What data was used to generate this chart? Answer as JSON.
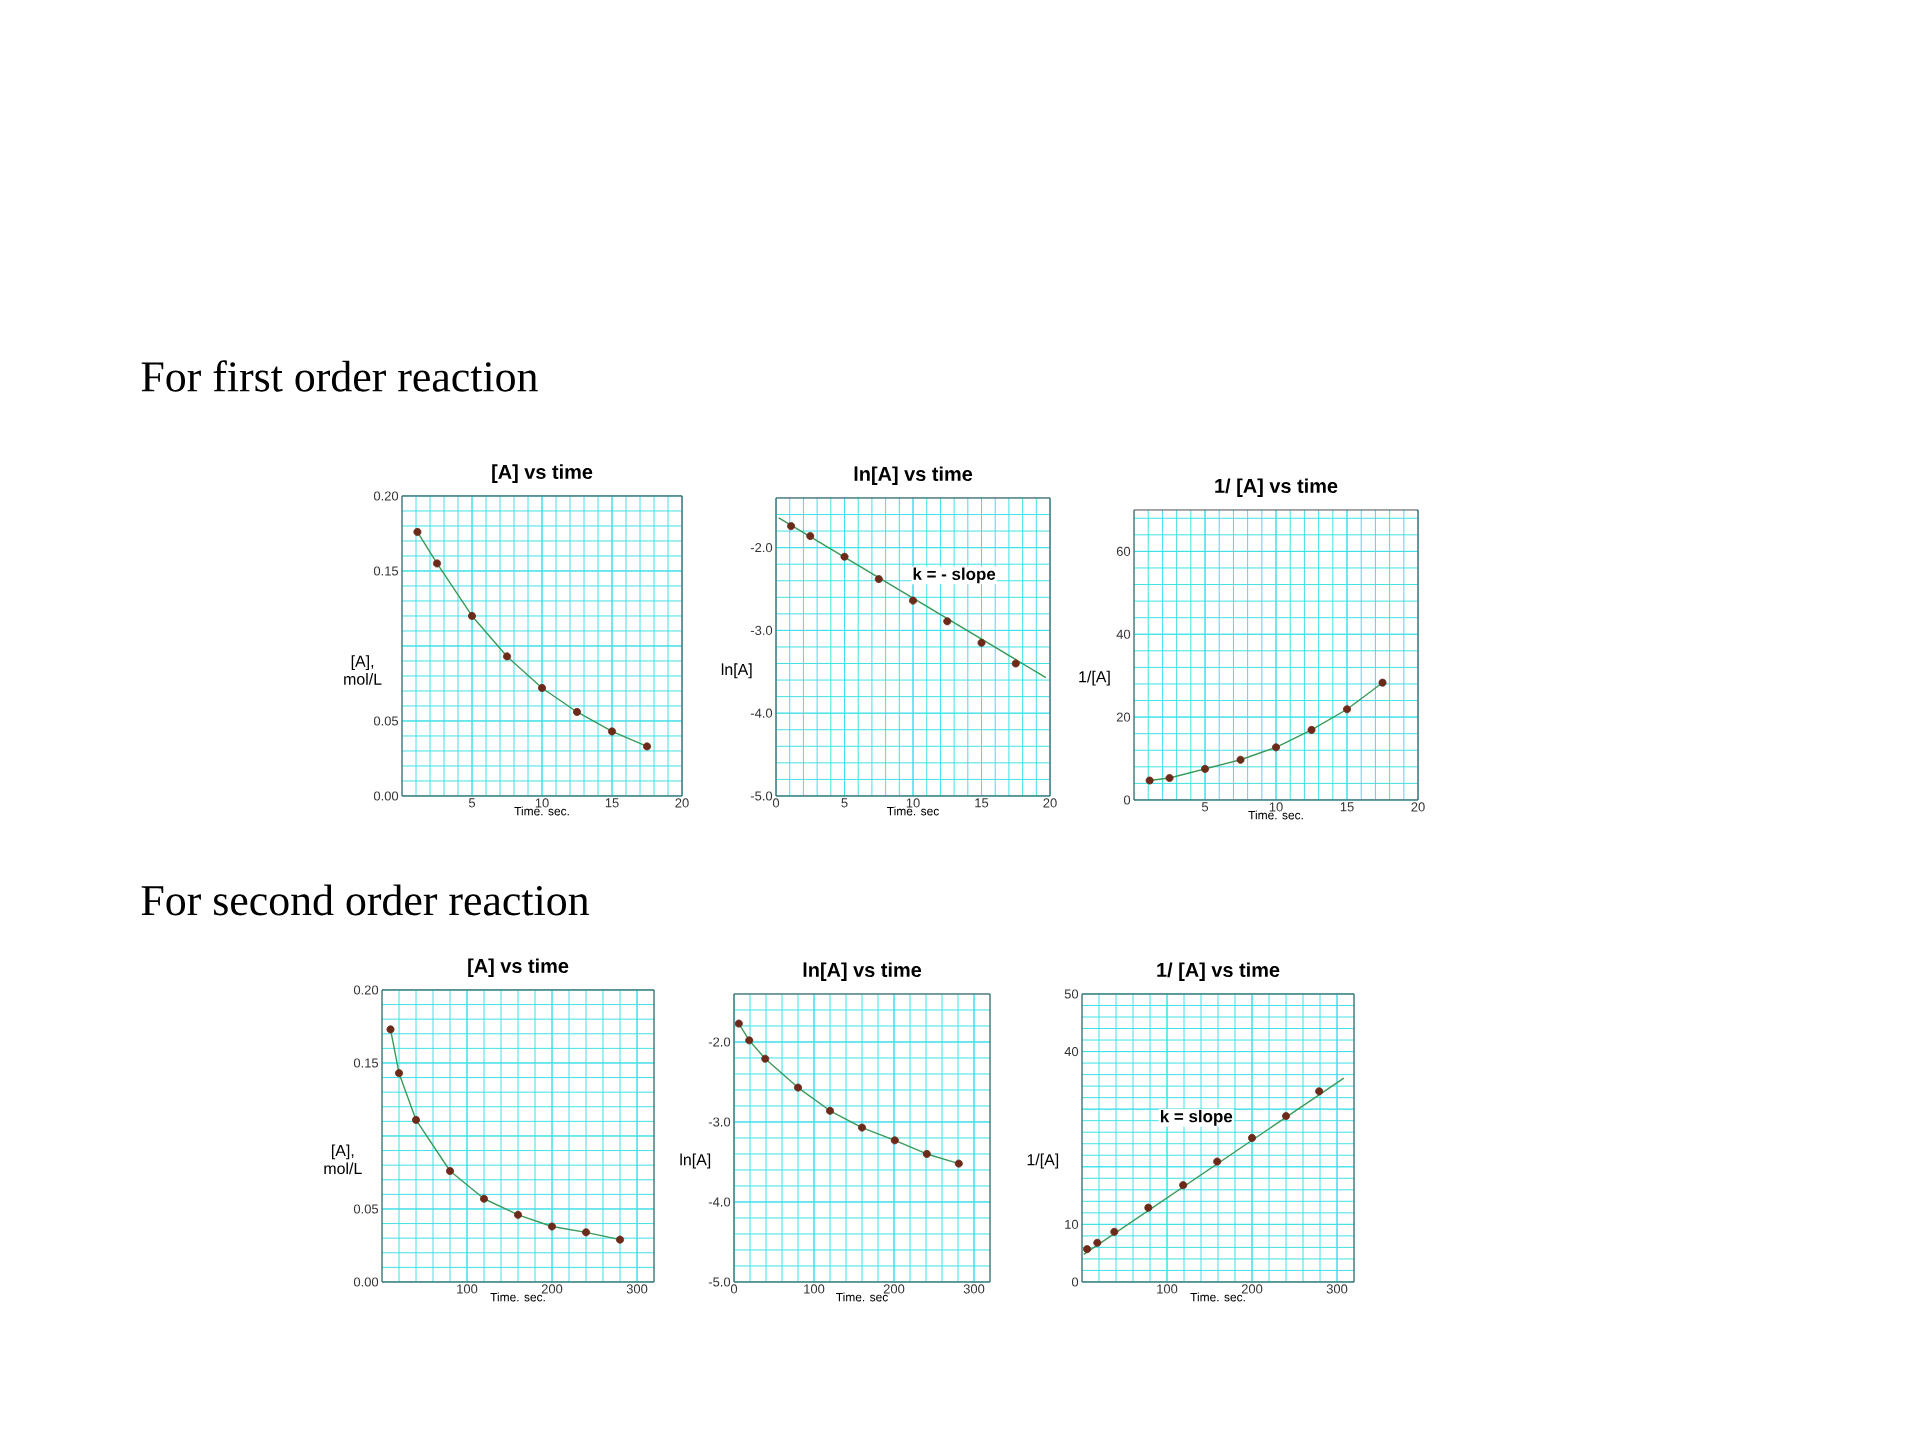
{
  "chart_data": [
    {
      "type": "other",
      "title": "For first order reaction"
    },
    {
      "type": "line",
      "title": "[A]  vs time",
      "xlabel": "Time. sec.",
      "ylabel": "[A], mol/L",
      "xlim": [
        0,
        20
      ],
      "ylim": [
        0,
        0.2
      ],
      "xticks": [
        5,
        10,
        15,
        20
      ],
      "yticks": [
        {
          "value": 0,
          "label": "0.00"
        },
        0.05,
        {
          "value": 0.1,
          "label": null
        },
        0.15,
        {
          "value": 0.2,
          "label": "0.20"
        }
      ],
      "grid": true,
      "series": [
        {
          "type": "line",
          "color": "#3a9a5a",
          "x": [
            1.1,
            2.5,
            5,
            7.5,
            10,
            12.5,
            15,
            17.5
          ],
          "values": [
            0.176,
            0.155,
            0.12,
            0.093,
            0.072,
            0.056,
            0.043,
            0.033
          ]
        },
        {
          "type": "scatter",
          "color": "#6b2a1a",
          "x": [
            1.1,
            2.5,
            5,
            7.5,
            10,
            12.5,
            15,
            17.5
          ],
          "values": [
            0.176,
            0.155,
            0.12,
            0.093,
            0.072,
            0.056,
            0.043,
            0.033
          ]
        }
      ]
    },
    {
      "type": "line",
      "title": "ln[A] vs time",
      "xlabel": "Time. sec",
      "ylabel": "ln[A]",
      "xlim": [
        0,
        20
      ],
      "ylim": [
        -5,
        -1.4
      ],
      "xticks": [
        0,
        5,
        10,
        15,
        20
      ],
      "yticks": [
        {
          "value": -5,
          "label": "-5.0"
        },
        {
          "value": -4,
          "label": "-4.0"
        },
        {
          "value": -3,
          "label": "-3.0"
        },
        {
          "value": -2,
          "label": "-2.0"
        }
      ],
      "grid": true,
      "annotations": [
        "k = - slope"
      ],
      "series": [
        {
          "type": "line",
          "color": "#3a9a5a",
          "x": [
            0.2,
            19.7
          ],
          "values": [
            -1.64,
            -3.57
          ]
        },
        {
          "type": "scatter",
          "color": "#6b2a1a",
          "x": [
            1.1,
            2.5,
            5,
            7.5,
            10,
            12.5,
            15,
            17.5
          ],
          "values": [
            -1.74,
            -1.86,
            -2.11,
            -2.38,
            -2.64,
            -2.89,
            -3.15,
            -3.4
          ]
        }
      ]
    },
    {
      "type": "line",
      "title": "1/ [A] vs time",
      "xlabel": "Time. sec.",
      "ylabel": "1/[A]",
      "xlim": [
        0,
        20
      ],
      "ylim": [
        0,
        70
      ],
      "xticks": [
        5,
        10,
        15,
        20
      ],
      "yticks": [
        0,
        20,
        40,
        60
      ],
      "grid": true,
      "series": [
        {
          "type": "line",
          "color": "#3a9a5a",
          "x": [
            1.1,
            2.5,
            5,
            7.5,
            10,
            12.5,
            15,
            17.5
          ],
          "values": [
            4.7,
            5.3,
            7.5,
            9.7,
            12.7,
            16.9,
            21.9,
            28.3
          ]
        },
        {
          "type": "scatter",
          "color": "#6b2a1a",
          "x": [
            1.1,
            2.5,
            5,
            7.5,
            10,
            12.5,
            15,
            17.5
          ],
          "values": [
            4.7,
            5.3,
            7.5,
            9.7,
            12.7,
            16.9,
            21.9,
            28.3
          ]
        }
      ]
    },
    {
      "type": "other",
      "title": "For second order reaction"
    },
    {
      "type": "line",
      "title": "[A]  vs time",
      "xlabel": "Time. sec.",
      "ylabel": "[A], mol/L",
      "xlim": [
        0,
        320
      ],
      "ylim": [
        0,
        0.2
      ],
      "xticks": [
        100,
        200,
        300
      ],
      "yticks": [
        {
          "value": 0,
          "label": "0.00"
        },
        0.05,
        {
          "value": 0.1,
          "label": null
        },
        0.15,
        {
          "value": 0.2,
          "label": "0.20"
        }
      ],
      "grid": true,
      "series": [
        {
          "type": "line",
          "color": "#3a9a5a",
          "x": [
            10,
            20,
            40,
            80,
            120,
            160,
            200,
            240,
            280
          ],
          "values": [
            0.173,
            0.143,
            0.111,
            0.076,
            0.057,
            0.046,
            0.038,
            0.034,
            0.029
          ]
        },
        {
          "type": "scatter",
          "color": "#6b2a1a",
          "x": [
            10,
            20,
            40,
            80,
            120,
            160,
            200,
            240,
            280
          ],
          "values": [
            0.173,
            0.143,
            0.111,
            0.076,
            0.057,
            0.046,
            0.038,
            0.034,
            0.029
          ]
        }
      ]
    },
    {
      "type": "line",
      "title": "ln[A] vs time",
      "xlabel": "Time. sec",
      "ylabel": "ln[A]",
      "xlim": [
        0,
        320
      ],
      "ylim": [
        -5,
        -1.4
      ],
      "xticks": [
        0,
        100,
        200,
        300
      ],
      "yticks": [
        {
          "value": -5,
          "label": "-5.0"
        },
        {
          "value": -4,
          "label": "-4.0"
        },
        {
          "value": -3,
          "label": "-3.0"
        },
        {
          "value": -2,
          "label": "-2.0"
        }
      ],
      "grid": true,
      "series": [
        {
          "type": "line",
          "color": "#3a9a5a",
          "x": [
            6,
            19,
            39,
            80,
            120,
            160,
            201,
            241,
            281
          ],
          "values": [
            -1.77,
            -1.98,
            -2.21,
            -2.57,
            -2.86,
            -3.07,
            -3.23,
            -3.4,
            -3.52
          ]
        },
        {
          "type": "scatter",
          "color": "#6b2a1a",
          "x": [
            6,
            19,
            39,
            80,
            120,
            160,
            201,
            241,
            281
          ],
          "values": [
            -1.77,
            -1.98,
            -2.21,
            -2.57,
            -2.86,
            -3.07,
            -3.23,
            -3.4,
            -3.52
          ]
        }
      ]
    },
    {
      "type": "line",
      "title": "1/ [A] vs time",
      "xlabel": "Time. sec.",
      "ylabel": "1/[A]",
      "xlim": [
        0,
        320
      ],
      "ylim": [
        0,
        50
      ],
      "xticks": [
        100,
        200,
        300
      ],
      "yticks": [
        0,
        10,
        {
          "value": 20,
          "label": null
        },
        {
          "value": 30,
          "label": null
        },
        40,
        50
      ],
      "grid": true,
      "annotations": [
        "k = slope"
      ],
      "series": [
        {
          "type": "line",
          "color": "#3a9a5a",
          "x": [
            2,
            308
          ],
          "values": [
            4.8,
            35.4
          ]
        },
        {
          "type": "scatter",
          "color": "#6b2a1a",
          "x": [
            6,
            18,
            38,
            78,
            119,
            159,
            200,
            240,
            279
          ],
          "values": [
            5.7,
            6.8,
            8.7,
            12.9,
            16.8,
            20.9,
            25.0,
            28.8,
            33.1
          ]
        }
      ]
    }
  ]
}
